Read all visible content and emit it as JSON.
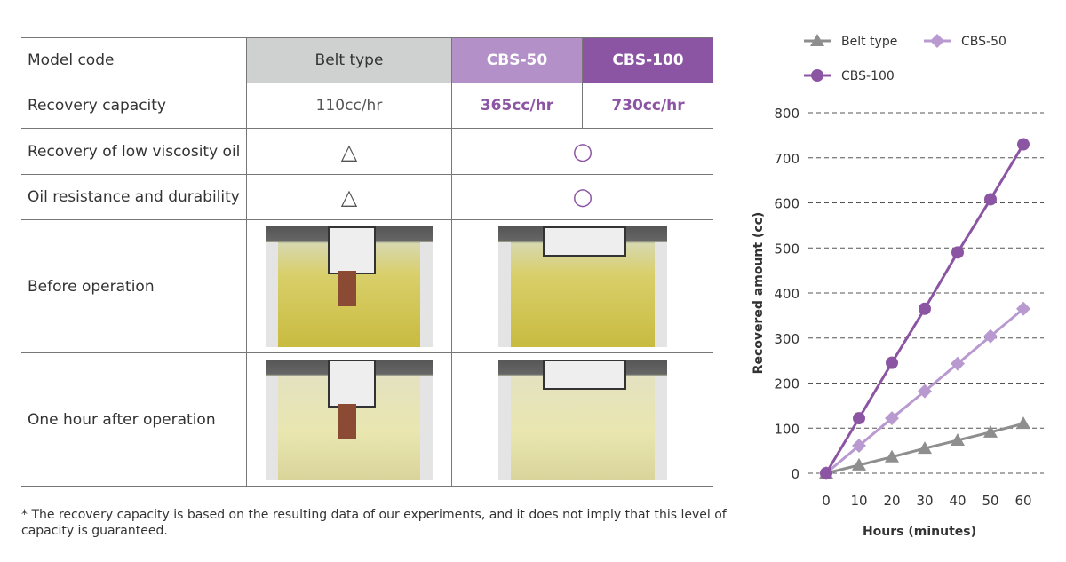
{
  "table": {
    "headers": {
      "label": "Model code",
      "belt": "Belt type",
      "cbs50": "CBS-50",
      "cbs100": "CBS-100"
    },
    "rows": {
      "capacity": {
        "label": "Recovery capacity",
        "belt": "110cc/hr",
        "cbs50": "365cc/hr",
        "cbs100": "730cc/hr"
      },
      "low_viscosity": {
        "label": "Recovery of low viscosity oil",
        "belt": "△",
        "cbs": "○"
      },
      "durability": {
        "label": "Oil resistance and durability",
        "belt": "△",
        "cbs": "○"
      },
      "before": {
        "label": "Before operation"
      },
      "after": {
        "label": "One hour after operation"
      }
    }
  },
  "footnote": "* The recovery capacity is based on the resulting data of our experiments, and it does not imply that this level of capacity is guaranteed.",
  "colors": {
    "belt": "#8e8e8e",
    "cbs50": "#b99ad0",
    "cbs100": "#8c55a3"
  },
  "chart_data": {
    "type": "line",
    "xlabel": "Hours (minutes)",
    "ylabel": "Recovered amount (cc)",
    "x": [
      0,
      10,
      20,
      30,
      40,
      50,
      60
    ],
    "xlim": [
      0,
      60
    ],
    "ylim": [
      0,
      800
    ],
    "yticks": [
      0,
      100,
      200,
      300,
      400,
      500,
      600,
      700,
      800
    ],
    "grid": "horizontal dashed",
    "legend": "top",
    "series": [
      {
        "name": "Belt type",
        "marker": "triangle",
        "values": [
          0,
          18,
          36,
          55,
          73,
          91,
          110
        ]
      },
      {
        "name": "CBS-50",
        "marker": "diamond",
        "values": [
          0,
          61,
          122,
          182,
          243,
          304,
          365
        ]
      },
      {
        "name": "CBS-100",
        "marker": "circle",
        "values": [
          0,
          122,
          245,
          365,
          490,
          608,
          730
        ]
      }
    ]
  }
}
